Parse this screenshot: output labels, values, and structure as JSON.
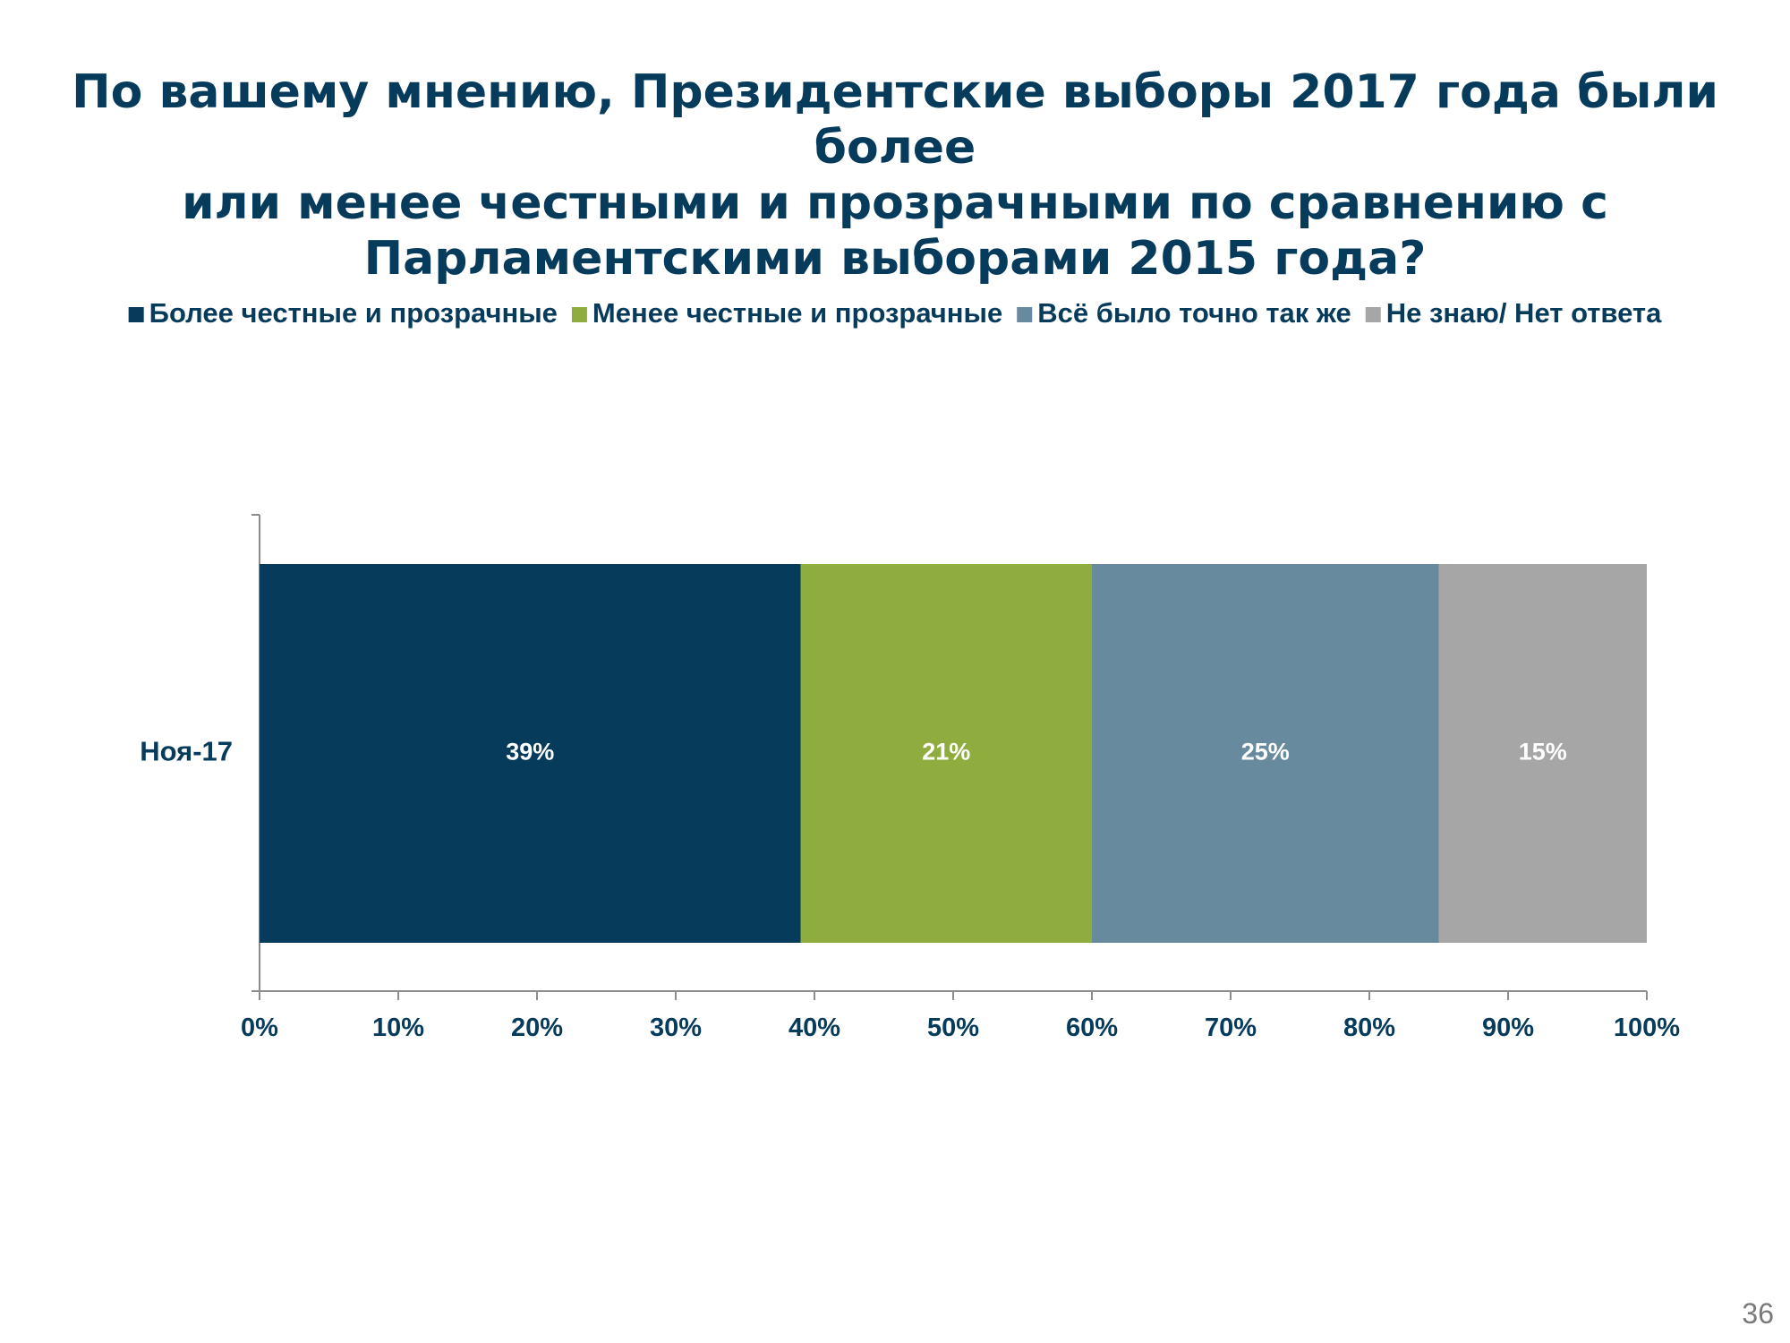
{
  "title_lines": [
    "По вашему мнению, Президентские выборы 2017 года были более",
    "или менее честными и прозрачными по сравнению с",
    "Парламентскими выборами 2015 года?"
  ],
  "slide_number": "36",
  "chart_data": {
    "type": "bar",
    "orientation": "horizontal",
    "stacked": true,
    "title": "По вашему мнению, Президентские выборы 2017 года были более или менее честными и прозрачными по сравнению с Парламентскими выборами 2015 года?",
    "categories": [
      "Ноя-17"
    ],
    "series": [
      {
        "name": "Более честные и прозрачные",
        "values": [
          39
        ],
        "label": "39%",
        "color": "#073b5c"
      },
      {
        "name": "Менее честные и прозрачные",
        "values": [
          21
        ],
        "label": "21%",
        "color": "#8fad3f"
      },
      {
        "name": "Всё было точно так же",
        "values": [
          25
        ],
        "label": "25%",
        "color": "#688a9e"
      },
      {
        "name": "Не знаю/ Нет ответа",
        "values": [
          15
        ],
        "label": "15%",
        "color": "#a6a6a6"
      }
    ],
    "xlim": [
      0,
      100
    ],
    "x_ticks": [
      0,
      10,
      20,
      30,
      40,
      50,
      60,
      70,
      80,
      90,
      100
    ],
    "x_tick_labels": [
      "0%",
      "10%",
      "20%",
      "30%",
      "40%",
      "50%",
      "60%",
      "70%",
      "80%",
      "90%",
      "100%"
    ],
    "xlabel": "",
    "ylabel": "",
    "legend_position": "top",
    "grid": false
  }
}
